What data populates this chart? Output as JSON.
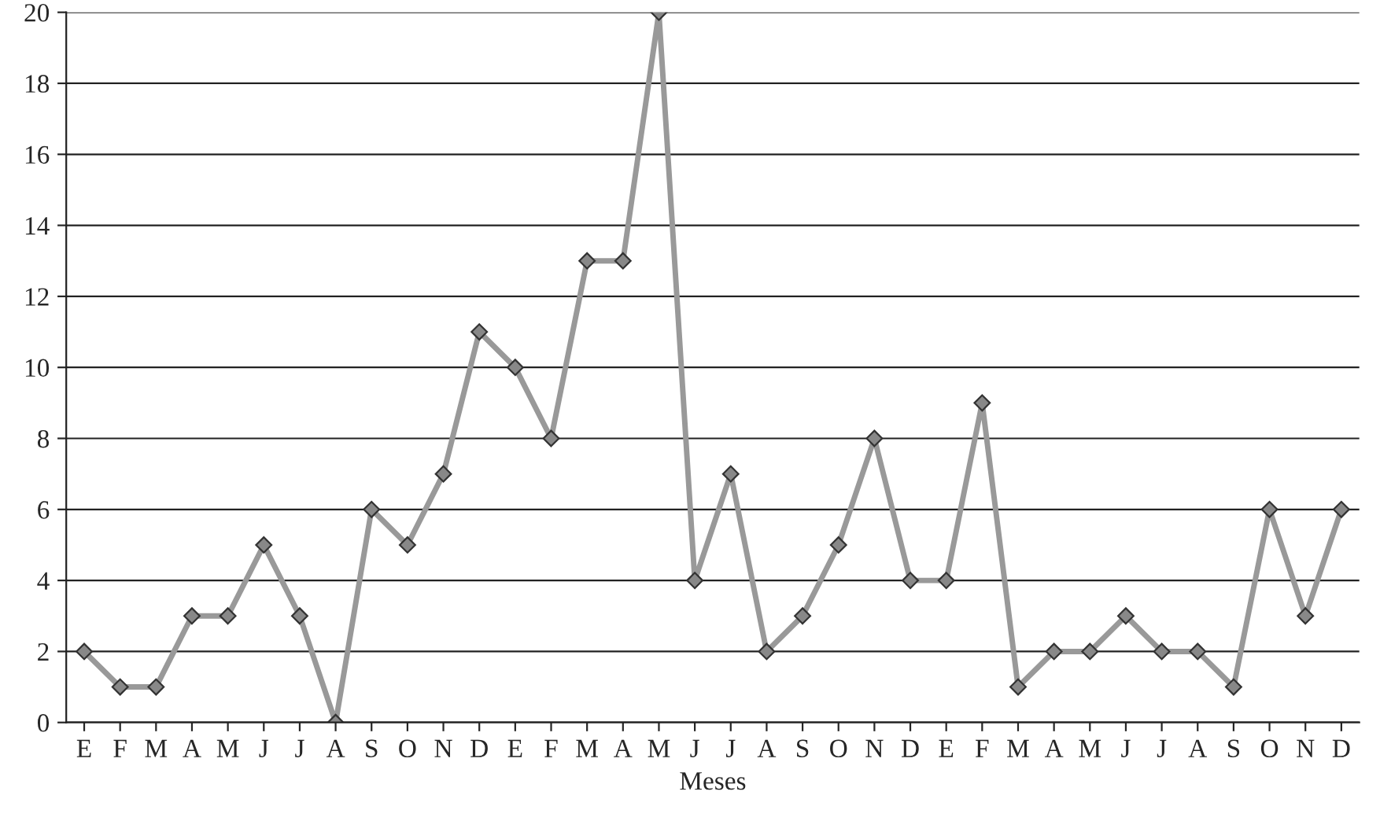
{
  "chart_data": {
    "type": "line",
    "xlabel": "Meses",
    "categories": [
      "E",
      "F",
      "M",
      "A",
      "M",
      "J",
      "J",
      "A",
      "S",
      "O",
      "N",
      "D",
      "E",
      "F",
      "M",
      "A",
      "M",
      "J",
      "J",
      "A",
      "S",
      "O",
      "N",
      "D",
      "E",
      "F",
      "M",
      "A",
      "M",
      "J",
      "J",
      "A",
      "S",
      "O",
      "N",
      "D"
    ],
    "series": [
      {
        "color": "#999999",
        "values": [
          2,
          1,
          1,
          3,
          3,
          5,
          3,
          0,
          6,
          5,
          7,
          11,
          10,
          8,
          13,
          13,
          20,
          4,
          7,
          2,
          3,
          5,
          8,
          4,
          4,
          9,
          1,
          2,
          2,
          3,
          2,
          2,
          1,
          6,
          3,
          6
        ]
      }
    ],
    "ylim": [
      0,
      20
    ],
    "yticks": [
      0,
      2,
      4,
      6,
      8,
      10,
      12,
      14,
      16,
      18,
      20
    ],
    "grid": "y",
    "marker": "diamond",
    "line_style": "solid"
  }
}
